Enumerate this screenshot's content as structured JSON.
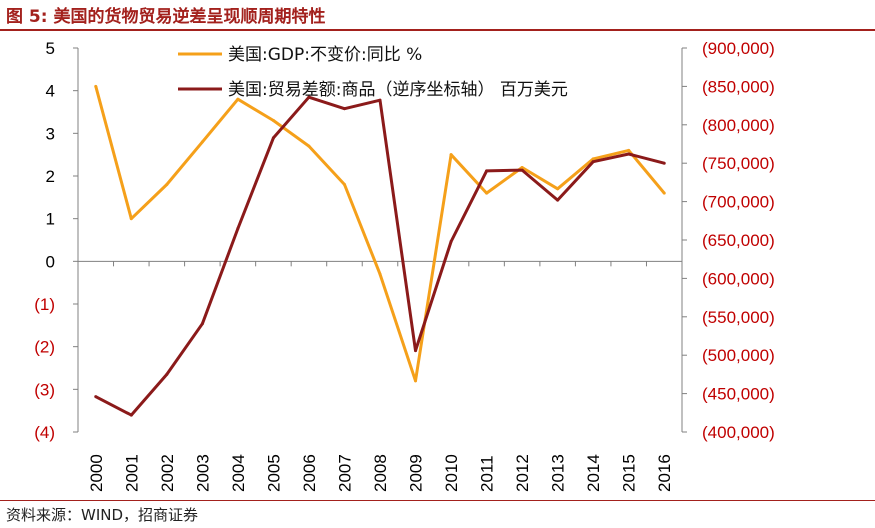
{
  "figure_title": "图 5:  美国的货物贸易逆差呈现顺周期特性",
  "source_note": "资料来源：WIND，招商证券",
  "colors": {
    "title": "#a3211d",
    "gdp_series": "#f5a01a",
    "trade_series": "#8b1a1a",
    "negative_ticks": "#c00000",
    "right_axis_ticks": "#c00000"
  },
  "chart_data": {
    "type": "line",
    "x": [
      "2000",
      "2001",
      "2002",
      "2003",
      "2004",
      "2005",
      "2006",
      "2007",
      "2008",
      "2009",
      "2010",
      "2011",
      "2012",
      "2013",
      "2014",
      "2015",
      "2016"
    ],
    "left_axis": {
      "ylim": [
        -4,
        5
      ],
      "tick_values": [
        5,
        4,
        3,
        2,
        1,
        0,
        -1,
        -2,
        -3,
        -4
      ],
      "tick_labels": [
        "5",
        "4",
        "3",
        "2",
        "1",
        "0",
        "(1)",
        "(2)",
        "(3)",
        "(4)"
      ]
    },
    "right_axis": {
      "ylim": [
        400000,
        900000
      ],
      "tick_values": [
        900000,
        850000,
        800000,
        750000,
        700000,
        650000,
        600000,
        550000,
        500000,
        450000,
        400000
      ],
      "tick_labels": [
        "(900,000)",
        "(850,000)",
        "(800,000)",
        "(750,000)",
        "(700,000)",
        "(650,000)",
        "(600,000)",
        "(550,000)",
        "(500,000)",
        "(450,000)",
        "(400,000)"
      ]
    },
    "series": [
      {
        "name": "美国:GDP:不变价:同比 %",
        "axis": "left",
        "values": [
          4.1,
          1.0,
          1.8,
          2.8,
          3.8,
          3.3,
          2.7,
          1.8,
          -0.3,
          -2.8,
          2.5,
          1.6,
          2.2,
          1.7,
          2.4,
          2.6,
          1.6
        ]
      },
      {
        "name": "美国:贸易差额:商品（逆序坐标轴） 百万美元",
        "axis": "right",
        "values": [
          446000,
          422000,
          475000,
          541000,
          665000,
          783000,
          836000,
          821000,
          832000,
          506000,
          648000,
          740000,
          741000,
          702000,
          752000,
          762000,
          750000
        ]
      }
    ],
    "legend_position": "top-center",
    "grid": false
  }
}
